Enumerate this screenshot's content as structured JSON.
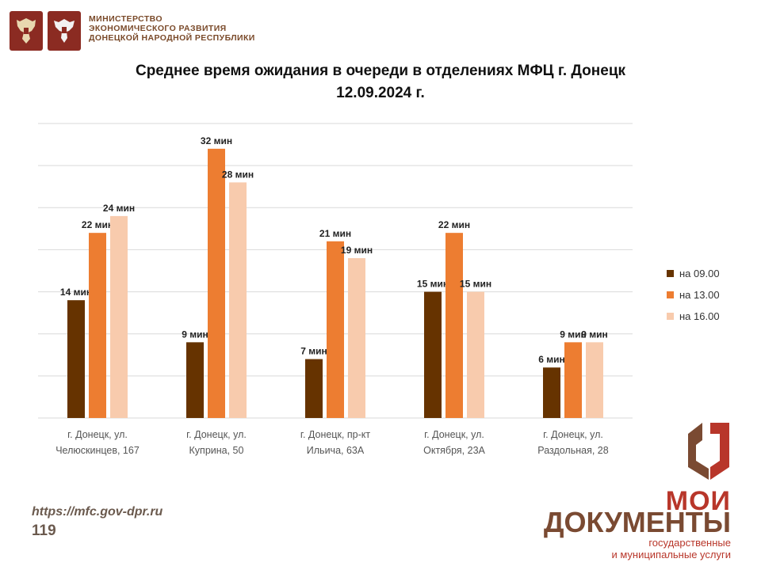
{
  "header": {
    "ministry_lines": [
      "МИНИСТЕРСТВО",
      "ЭКОНОМИЧЕСКОГО РАЗВИТИЯ",
      "ДОНЕЦКОЙ НАРОДНОЙ РЕСПУБЛИКИ"
    ]
  },
  "chart_data": {
    "type": "bar",
    "title": "Среднее время ожидания в очереди в отделениях МФЦ г. Донецк",
    "subtitle": "12.09.2024 г.",
    "categories": [
      [
        "г. Донецк, ул.",
        "Челюскинцев, 167"
      ],
      [
        "г. Донецк, ул.",
        "Куприна, 50"
      ],
      [
        "г. Донецк, пр-кт",
        "Ильича, 63А"
      ],
      [
        "г. Донецк, ул.",
        "Октября, 23А"
      ],
      [
        "г. Донецк, ул.",
        "Раздольная, 28"
      ]
    ],
    "series": [
      {
        "name": "на 09.00",
        "color": "#663300",
        "values": [
          14,
          9,
          7,
          15,
          6
        ],
        "labels": [
          "14 мин",
          "9 мин",
          "7 мин",
          "15 мин",
          "6 мин"
        ]
      },
      {
        "name": "на 13.00",
        "color": "#ed7d31",
        "values": [
          22,
          32,
          21,
          22,
          9
        ],
        "labels": [
          "22 мин",
          "32 мин",
          "21 мин",
          "22 мин",
          "9 мин"
        ]
      },
      {
        "name": "на 16.00",
        "color": "#f8cbad",
        "values": [
          24,
          28,
          19,
          15,
          9
        ],
        "labels": [
          "24 мин",
          "28 мин",
          "19 мин",
          "15 мин",
          "9 мин"
        ]
      }
    ],
    "ylim": [
      0,
      35
    ],
    "grid": true,
    "legend": "right"
  },
  "footer": {
    "url": "https://mfc.gov-dpr.ru",
    "page_number": "119"
  },
  "brand": {
    "line1": "МОИ",
    "line2": "ДОКУМЕНТЫ",
    "sub1": "государственные",
    "sub2": "и муниципальные услуги"
  }
}
